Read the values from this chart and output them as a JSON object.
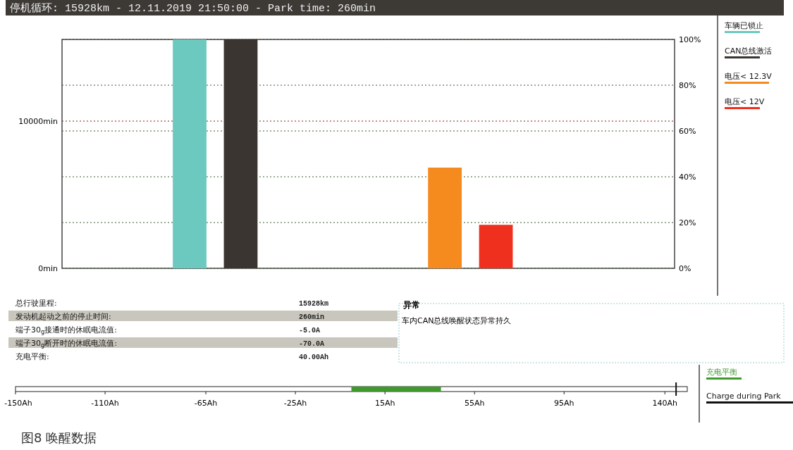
{
  "chart_data": [
    {
      "type": "bar",
      "title": "停机循环: 15928km - 12.11.2019 21:50:00 - Park time: 260min",
      "categories": [
        null,
        null,
        null,
        null,
        null,
        null,
        null,
        null,
        null,
        null,
        null,
        null
      ],
      "series": [
        {
          "name": "车辆已锁止",
          "color": "#6cc9c0",
          "axis": "y2",
          "values": [
            null,
            null,
            100,
            null,
            null,
            null,
            null,
            null,
            null,
            null,
            null,
            null
          ]
        },
        {
          "name": "CAN总线激活",
          "color": "#3a3530",
          "axis": "y2",
          "values": [
            null,
            null,
            null,
            100,
            null,
            null,
            null,
            null,
            null,
            null,
            null,
            null
          ]
        },
        {
          "name": "电压< 12.3V",
          "color": "#f58a1f",
          "axis": "y2",
          "values": [
            null,
            null,
            null,
            null,
            null,
            null,
            null,
            44,
            null,
            null,
            null,
            null
          ]
        },
        {
          "name": "电压< 12V",
          "color": "#f0301e",
          "axis": "y2",
          "values": [
            null,
            null,
            null,
            null,
            null,
            null,
            null,
            null,
            19,
            null,
            null,
            null
          ]
        }
      ],
      "ylim": [
        0,
        15550
      ],
      "yticks": [
        {
          "value": 0,
          "label": "0min"
        },
        {
          "value": 10000,
          "label": "10000min"
        }
      ],
      "y2lim": [
        0,
        100
      ],
      "y2ticks": [
        {
          "value": 0,
          "label": "0%"
        },
        {
          "value": 20,
          "label": "20%"
        },
        {
          "value": 40,
          "label": "40%"
        },
        {
          "value": 60,
          "label": "60%"
        },
        {
          "value": 80,
          "label": "80%"
        },
        {
          "value": 100,
          "label": "100%"
        }
      ],
      "ref_lines": [
        {
          "axis": "y",
          "value": 10000,
          "color": "#8b1a1a",
          "line_style": "dotted"
        }
      ],
      "grid": true,
      "legend": "right"
    },
    {
      "type": "other",
      "title": "异常",
      "annotations": [
        "总行驶里程:",
        "15928km",
        "发动机起动之前的停止时间:",
        "260min",
        "端子30$_{g}$接通时的休眠电流值:",
        "-5.0A",
        "端子30$_{g}$断开时的休眠电流值:",
        "-70.0A",
        "充电平衡:",
        "40.00Ah",
        "车内CAN总线唤醒状态异常持久"
      ]
    },
    {
      "type": "bar",
      "orientation": "horizontal",
      "categories": [
        null
      ],
      "series": [
        {
          "name": "充电平衡",
          "color": "#3f9a2e",
          "values": [
            40
          ]
        }
      ],
      "xlim": [
        -150,
        150
      ],
      "xticks": [
        {
          "value": -150,
          "label": "-150Ah"
        },
        {
          "value": -110,
          "label": "-110Ah"
        },
        {
          "value": -65,
          "label": "-65Ah"
        },
        {
          "value": -25,
          "label": "-25Ah"
        },
        {
          "value": 15,
          "label": "15Ah"
        },
        {
          "value": 55,
          "label": "55Ah"
        },
        {
          "value": 95,
          "label": "95Ah"
        },
        {
          "value": 140,
          "label": "140Ah"
        }
      ],
      "ref_lines": [
        {
          "axis": "x",
          "value": 145,
          "label": "Charge during Park",
          "color": "#111111"
        }
      ],
      "legend": "right",
      "annotations": [
        "图8  唤醒数据"
      ]
    }
  ]
}
